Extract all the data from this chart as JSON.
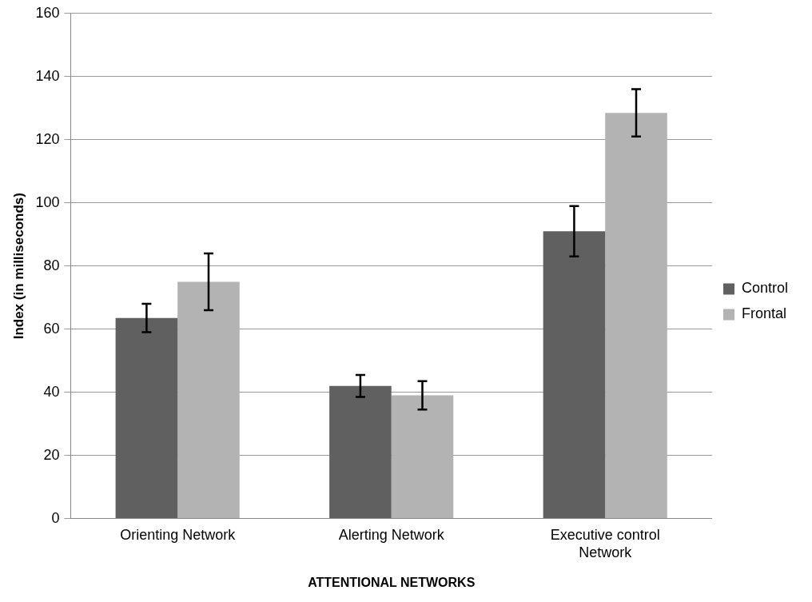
{
  "chart_data": {
    "type": "bar",
    "xlabel": "ATTENTIONAL NETWORKS",
    "ylabel": "Index (in milliseconds)",
    "categories": [
      [
        "Orienting Network"
      ],
      [
        "Alerting Network"
      ],
      [
        "Executive control",
        "Network"
      ]
    ],
    "series": [
      {
        "name": "Control",
        "color": "#606060",
        "values": [
          63.5,
          42,
          91
        ],
        "errors": [
          4.5,
          3.5,
          8
        ]
      },
      {
        "name": "Frontal",
        "color": "#b3b3b3",
        "values": [
          75,
          39,
          128.5
        ],
        "errors": [
          9,
          4.5,
          7.5
        ]
      }
    ],
    "ylim": [
      0,
      160
    ],
    "yticks": [
      0,
      20,
      40,
      60,
      80,
      100,
      120,
      140,
      160
    ],
    "grid": "y",
    "legend": "right"
  }
}
